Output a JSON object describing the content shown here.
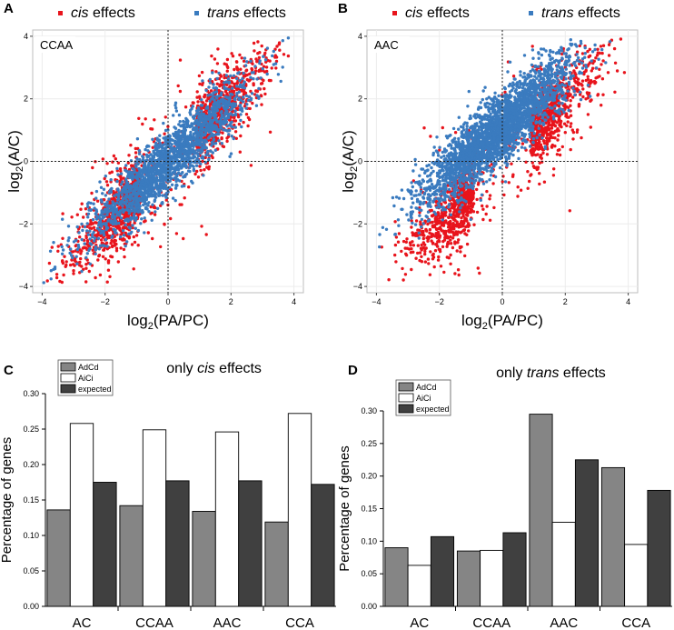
{
  "chart_data": [
    {
      "panel": "A",
      "type": "scatter",
      "annotation": "CCAA",
      "xlabel_base": "log",
      "xlabel_sub": "2",
      "xlabel_rest": "(PA/PC)",
      "ylabel_base": "log",
      "ylabel_sub": "2",
      "ylabel_rest": "(A/C)",
      "xlim": [
        -4.3,
        4.3
      ],
      "ylim": [
        -4.2,
        4.2
      ],
      "xticks": [
        -4,
        -2,
        0,
        2,
        4
      ],
      "xtick_labels": [
        "−4",
        "−2",
        "0",
        "2",
        "4"
      ],
      "yticks": [
        -4,
        -2,
        0,
        2,
        4
      ],
      "ytick_labels": [
        "−4",
        "−2",
        "0",
        "2",
        "4"
      ],
      "grid": true,
      "legend": [
        {
          "italic": "cis",
          "rest": " effects",
          "color": "#e8141c"
        },
        {
          "italic": "trans",
          "rest": " effects",
          "color": "#3a7bbf"
        }
      ],
      "series": [
        {
          "name": "cis effects",
          "color": "#e8141c",
          "n": 1700,
          "slope": 1.0,
          "intercept": 0.0,
          "xmean": 0.0,
          "xsd": 1.5,
          "noise": 0.55,
          "model": "two-cluster",
          "offset": 0.75
        },
        {
          "name": "trans effects",
          "color": "#3a7bbf",
          "n": 1900,
          "slope": 0.9,
          "intercept": 0.0,
          "xmean": 0.0,
          "xsd": 1.3,
          "noise": 0.5,
          "model": "band",
          "offset": 0.0
        }
      ]
    },
    {
      "panel": "B",
      "type": "scatter",
      "annotation": "AAC",
      "xlabel_base": "log",
      "xlabel_sub": "2",
      "xlabel_rest": "(PA/PC)",
      "ylabel_base": "log",
      "ylabel_sub": "2",
      "ylabel_rest": "(A/C)",
      "xlim": [
        -4.3,
        4.3
      ],
      "ylim": [
        -4.2,
        4.2
      ],
      "xticks": [
        -4,
        -2,
        0,
        2,
        4
      ],
      "xtick_labels": [
        "−4",
        "−2",
        "0",
        "2",
        "4"
      ],
      "yticks": [
        -4,
        -2,
        0,
        2,
        4
      ],
      "ytick_labels": [
        "−4",
        "−2",
        "0",
        "2",
        "4"
      ],
      "grid": true,
      "legend": [
        {
          "italic": "cis",
          "rest": " effects",
          "color": "#e8141c"
        },
        {
          "italic": "trans",
          "rest": " effects",
          "color": "#3a7bbf"
        }
      ],
      "series": [
        {
          "name": "cis effects",
          "color": "#e8141c",
          "n": 1500,
          "slope": 1.0,
          "intercept": 0.0,
          "xmean": 0.0,
          "xsd": 1.5,
          "noise": 0.55,
          "model": "two-cluster",
          "offset": 0.75
        },
        {
          "name": "trans effects",
          "color": "#3a7bbf",
          "n": 2800,
          "slope": 0.85,
          "intercept": 1.1,
          "xmean": -0.2,
          "xsd": 1.2,
          "noise": 0.55,
          "model": "band",
          "offset": 0.0
        }
      ]
    },
    {
      "panel": "C",
      "type": "bar",
      "title_pre": "only ",
      "title_italic": "cis",
      "title_post": " effects",
      "ylabel": "Percentage of genes",
      "categories": [
        "AC",
        "CCAA",
        "AAC",
        "CCA"
      ],
      "ylim": [
        0,
        0.3
      ],
      "yticks": [
        0.0,
        0.05,
        0.1,
        0.15,
        0.2,
        0.25,
        0.3
      ],
      "ytick_labels": [
        "0.00",
        "0.05",
        "0.10",
        "0.15",
        "0.20",
        "0.25",
        "0.30"
      ],
      "series": [
        {
          "name": "AdCd",
          "color": "#858585",
          "values": [
            0.136,
            0.142,
            0.134,
            0.119
          ]
        },
        {
          "name": "AiCi",
          "color": "#ffffff",
          "values": [
            0.258,
            0.249,
            0.246,
            0.272
          ]
        },
        {
          "name": "expected",
          "color": "#404040",
          "values": [
            0.175,
            0.177,
            0.177,
            0.172
          ]
        }
      ]
    },
    {
      "panel": "D",
      "type": "bar",
      "title_pre": "only ",
      "title_italic": "trans",
      "title_post": " effects",
      "ylabel": "Percentage of genes",
      "categories": [
        "AC",
        "CCAA",
        "AAC",
        "CCA"
      ],
      "ylim": [
        0,
        0.3
      ],
      "yticks": [
        0.0,
        0.05,
        0.1,
        0.15,
        0.2,
        0.25,
        0.3
      ],
      "ytick_labels": [
        "0.00",
        "0.05",
        "0.10",
        "0.15",
        "0.20",
        "0.25",
        "0.30"
      ],
      "series": [
        {
          "name": "AdCd",
          "color": "#858585",
          "values": [
            0.09,
            0.085,
            0.295,
            0.213
          ]
        },
        {
          "name": "AiCi",
          "color": "#ffffff",
          "values": [
            0.063,
            0.086,
            0.129,
            0.095
          ]
        },
        {
          "name": "expected",
          "color": "#404040",
          "values": [
            0.107,
            0.113,
            0.225,
            0.178
          ]
        }
      ]
    }
  ]
}
